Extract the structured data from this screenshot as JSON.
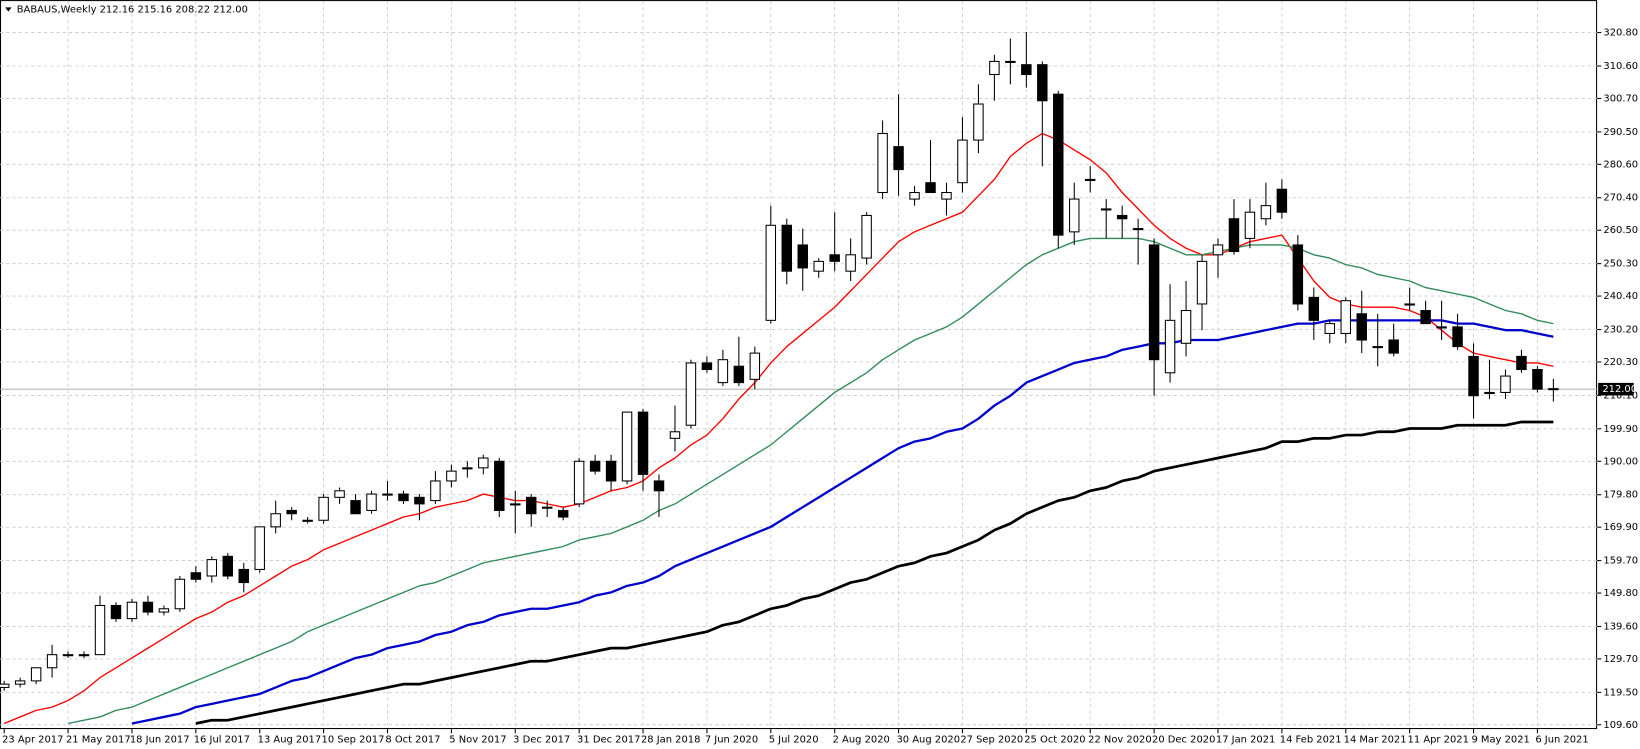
{
  "chart_data": {
    "type": "candlestick",
    "title": "BABAUS,Weekly  212.16 215.16 208.22 212.00",
    "categories": [
      "23 Apr 2017",
      null,
      null,
      null,
      "21 May 2017",
      null,
      null,
      null,
      "18 Jun 2017",
      null,
      null,
      null,
      "16 Jul 2017",
      null,
      null,
      null,
      "13 Aug 2017",
      null,
      null,
      null,
      "10 Sep 2017",
      null,
      null,
      null,
      "8 Oct 2017",
      null,
      null,
      null,
      "5 Nov 2017",
      null,
      null,
      null,
      "3 Dec 2017",
      null,
      null,
      null,
      "31 Dec 2017",
      null,
      null,
      null,
      "28 Jan 2018",
      null,
      null,
      null,
      "7 Jun 2020",
      null,
      null,
      null,
      "5 Jul 2020",
      null,
      null,
      null,
      "2 Aug 2020",
      null,
      null,
      null,
      "30 Aug 2020",
      null,
      null,
      null,
      "27 Sep 2020",
      null,
      null,
      null,
      "25 Oct 2020",
      null,
      null,
      null,
      "22 Nov 2020",
      null,
      null,
      null,
      "20 Dec 2020",
      null,
      null,
      null,
      "17 Jan 2021",
      null,
      null,
      null,
      "14 Feb 2021",
      null,
      null,
      null,
      "14 Mar 2021",
      null,
      null,
      null,
      "11 Apr 2021",
      null,
      null,
      null,
      "9 May 2021",
      null,
      null,
      null,
      "6 Jun 2021",
      null
    ],
    "ohlc": {
      "open": [
        121,
        122,
        123,
        127,
        131,
        131,
        131,
        146,
        142,
        147,
        144,
        145,
        156,
        155,
        161,
        157,
        157,
        170,
        175,
        172,
        172,
        179,
        178,
        175,
        180,
        180,
        179,
        178,
        184,
        188,
        188,
        190,
        177,
        179,
        176,
        175,
        177,
        190,
        190,
        184,
        205,
        184,
        197,
        201,
        220,
        214,
        219,
        215,
        233,
        262,
        256,
        248,
        253,
        248,
        252,
        272,
        286,
        270,
        275,
        270,
        275,
        288,
        308,
        312,
        311,
        311,
        302,
        260,
        276,
        267,
        265,
        261,
        256,
        217,
        226,
        238,
        253,
        264,
        258,
        264,
        273,
        256,
        240,
        229,
        229,
        235,
        225,
        227,
        238,
        236,
        231,
        231,
        222,
        211,
        211,
        222,
        218,
        212.16
      ],
      "high": [
        123,
        124,
        127,
        134,
        132,
        132,
        149,
        147,
        148,
        149,
        146,
        155,
        158,
        161,
        162,
        159,
        170,
        178,
        176,
        173,
        180,
        182,
        180,
        181,
        184,
        181,
        180,
        187,
        189,
        190,
        192,
        191,
        181,
        180,
        178,
        176,
        191,
        192,
        192,
        205,
        206,
        186,
        207,
        221,
        222,
        224,
        228,
        225,
        268,
        264,
        261,
        252,
        266,
        258,
        266,
        294,
        302,
        274,
        288,
        275,
        295,
        305,
        314,
        319,
        321,
        312,
        303,
        275,
        280,
        270,
        268,
        264,
        258,
        244,
        245,
        253,
        258,
        270,
        270,
        275,
        276,
        259,
        243,
        233,
        240,
        242,
        235,
        232,
        243,
        239,
        239,
        235,
        226,
        221,
        218,
        224,
        219,
        215.16
      ],
      "low": [
        120,
        121,
        122,
        124,
        130,
        130,
        131,
        141,
        141,
        143,
        143,
        144,
        153,
        153,
        154,
        150,
        156,
        168,
        172,
        171,
        171,
        177,
        175,
        174,
        178,
        177,
        172,
        177,
        182,
        185,
        186,
        173,
        168,
        170,
        173,
        172,
        176,
        186,
        181,
        183,
        181,
        173,
        193,
        200,
        217,
        213,
        213,
        212,
        232,
        244,
        242,
        246,
        248,
        245,
        250,
        270,
        271,
        268,
        273,
        265,
        272,
        284,
        300,
        305,
        304,
        280,
        255,
        256,
        272,
        258,
        258,
        250,
        210,
        214,
        222,
        230,
        246,
        253,
        255,
        262,
        264,
        236,
        227,
        226,
        226,
        223,
        219,
        222,
        236,
        232,
        227,
        224,
        203,
        209,
        209,
        217,
        211,
        208.22
      ],
      "close": [
        122,
        123,
        127,
        131,
        131,
        131,
        146,
        142,
        147,
        144,
        145,
        154,
        154,
        160,
        155,
        153,
        170,
        174,
        174,
        172,
        179,
        181,
        174,
        180,
        180,
        178,
        177,
        184,
        187,
        188,
        191,
        175,
        177,
        174,
        176,
        173,
        190,
        187,
        184,
        205,
        186,
        181,
        199,
        220,
        218,
        221,
        214,
        223,
        262,
        248,
        249,
        251,
        251,
        253,
        265,
        290,
        279,
        272,
        272,
        272,
        288,
        299,
        312,
        312,
        308,
        300,
        259,
        270,
        276,
        267,
        264,
        261,
        221,
        233,
        236,
        251,
        256,
        254,
        266,
        268,
        266,
        238,
        233,
        232,
        239,
        227,
        225,
        223,
        238,
        232,
        231,
        225,
        210,
        211,
        216,
        218,
        212,
        212
      ]
    },
    "up_color": "#ffffff",
    "down_color": "#000000",
    "series": [
      {
        "color": "#ff0000",
        "line_width": 1.3,
        "values": [
          110,
          112,
          114,
          115,
          117,
          120,
          124,
          127,
          130,
          133,
          136,
          139,
          142,
          144,
          147,
          149,
          152,
          155,
          158,
          160,
          163,
          165,
          167,
          169,
          171,
          173,
          174,
          176,
          177,
          178,
          180,
          179,
          178,
          178,
          177,
          176,
          177,
          179,
          181,
          182,
          184,
          188,
          191,
          195,
          198,
          203,
          209,
          214,
          220,
          225,
          229,
          233,
          237,
          242,
          247,
          252,
          257,
          260,
          262,
          264,
          266,
          271,
          276,
          283,
          287,
          290,
          288,
          285,
          282,
          278,
          272,
          267,
          262,
          258,
          255,
          253,
          253,
          255,
          257,
          258,
          259,
          252,
          245,
          240,
          238,
          237,
          237,
          237,
          236,
          234,
          230,
          226,
          223,
          222,
          221,
          220,
          220,
          219
        ]
      },
      {
        "color": "#2e8b57",
        "line_width": 1.3,
        "values": [
          null,
          null,
          null,
          null,
          110,
          111,
          112,
          114,
          115,
          117,
          119,
          121,
          123,
          125,
          127,
          129,
          131,
          133,
          135,
          138,
          140,
          142,
          144,
          146,
          148,
          150,
          152,
          153,
          155,
          157,
          159,
          160,
          161,
          162,
          163,
          164,
          166,
          167,
          168,
          170,
          172,
          175,
          177,
          180,
          183,
          186,
          189,
          192,
          195,
          199,
          203,
          207,
          211,
          214,
          217,
          221,
          224,
          227,
          229,
          231,
          234,
          238,
          242,
          246,
          250,
          253,
          255,
          257,
          258,
          258,
          258,
          258,
          257,
          255,
          253,
          253,
          254,
          255,
          256,
          256,
          256,
          255,
          253,
          252,
          250,
          249,
          247,
          246,
          245,
          243,
          242,
          241,
          240,
          238,
          236,
          235,
          233,
          232
        ]
      },
      {
        "color": "#0000cc",
        "line_width": 2.2,
        "values": [
          null,
          null,
          null,
          null,
          null,
          null,
          null,
          null,
          110,
          111,
          112,
          113,
          115,
          116,
          117,
          118,
          119,
          121,
          123,
          124,
          126,
          128,
          130,
          131,
          133,
          134,
          135,
          137,
          138,
          140,
          141,
          143,
          144,
          145,
          145,
          146,
          147,
          149,
          150,
          152,
          153,
          155,
          158,
          160,
          162,
          164,
          166,
          168,
          170,
          173,
          176,
          179,
          182,
          185,
          188,
          191,
          194,
          196,
          197,
          199,
          200,
          203,
          207,
          210,
          214,
          216,
          218,
          220,
          221,
          222,
          224,
          225,
          226,
          226,
          227,
          227,
          227,
          228,
          229,
          230,
          231,
          232,
          232,
          233,
          233,
          233,
          233,
          233,
          233,
          233,
          233,
          232,
          232,
          231,
          230,
          230,
          229,
          228
        ]
      },
      {
        "color": "#000000",
        "line_width": 2.6,
        "values": [
          null,
          null,
          null,
          null,
          null,
          null,
          null,
          null,
          null,
          null,
          null,
          null,
          110,
          111,
          111,
          112,
          113,
          114,
          115,
          116,
          117,
          118,
          119,
          120,
          121,
          122,
          122,
          123,
          124,
          125,
          126,
          127,
          128,
          129,
          129,
          130,
          131,
          132,
          133,
          133,
          134,
          135,
          136,
          137,
          138,
          140,
          141,
          143,
          145,
          146,
          148,
          149,
          151,
          153,
          154,
          156,
          158,
          159,
          161,
          162,
          164,
          166,
          169,
          171,
          174,
          176,
          178,
          179,
          181,
          182,
          184,
          185,
          187,
          188,
          189,
          190,
          191,
          192,
          193,
          194,
          196,
          196,
          197,
          197,
          198,
          198,
          199,
          199,
          200,
          200,
          200,
          201,
          201,
          201,
          201,
          202,
          202,
          202
        ]
      }
    ],
    "ylim": [
      108.3,
      330.4
    ],
    "yticks": [
      {
        "value": 320.8,
        "label": "320.80"
      },
      {
        "value": 310.6,
        "label": "310.60"
      },
      {
        "value": 300.7,
        "label": "300.70"
      },
      {
        "value": 290.5,
        "label": "290.50"
      },
      {
        "value": 280.6,
        "label": "280.60"
      },
      {
        "value": 270.4,
        "label": "270.40"
      },
      {
        "value": 260.5,
        "label": "260.50"
      },
      {
        "value": 250.3,
        "label": "250.30"
      },
      {
        "value": 240.4,
        "label": "240.40"
      },
      {
        "value": 230.2,
        "label": "230.20"
      },
      {
        "value": 220.3,
        "label": "220.30"
      },
      {
        "value": 210.1,
        "label": "210.10"
      },
      {
        "value": 199.9,
        "label": "199.90"
      },
      {
        "value": 190,
        "label": "190.00"
      },
      {
        "value": 179.8,
        "label": "179.80"
      },
      {
        "value": 169.9,
        "label": "169.90"
      },
      {
        "value": 159.7,
        "label": "159.70"
      },
      {
        "value": 149.8,
        "label": "149.80"
      },
      {
        "value": 139.6,
        "label": "139.60"
      },
      {
        "value": 129.7,
        "label": "129.70"
      },
      {
        "value": 119.5,
        "label": "119.50"
      },
      {
        "value": 109.6,
        "label": "109.60"
      }
    ],
    "grid": true,
    "current_price": {
      "value": 212,
      "label": "212.00"
    }
  }
}
